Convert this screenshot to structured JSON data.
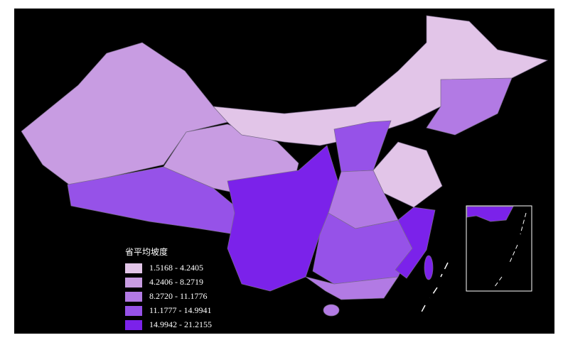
{
  "legend": {
    "title": "省平均坡度",
    "items": [
      {
        "label": "1.5168 - 4.2405",
        "color": "#e2c5e8"
      },
      {
        "label": "4.2406 - 8.2719",
        "color": "#c89ce2"
      },
      {
        "label": "8.2720 - 11.1776",
        "color": "#b27ae4"
      },
      {
        "label": "11.1777 - 14.9941",
        "color": "#9652e8"
      },
      {
        "label": "14.9942 - 21.2155",
        "color": "#7b22ea"
      }
    ]
  }
}
